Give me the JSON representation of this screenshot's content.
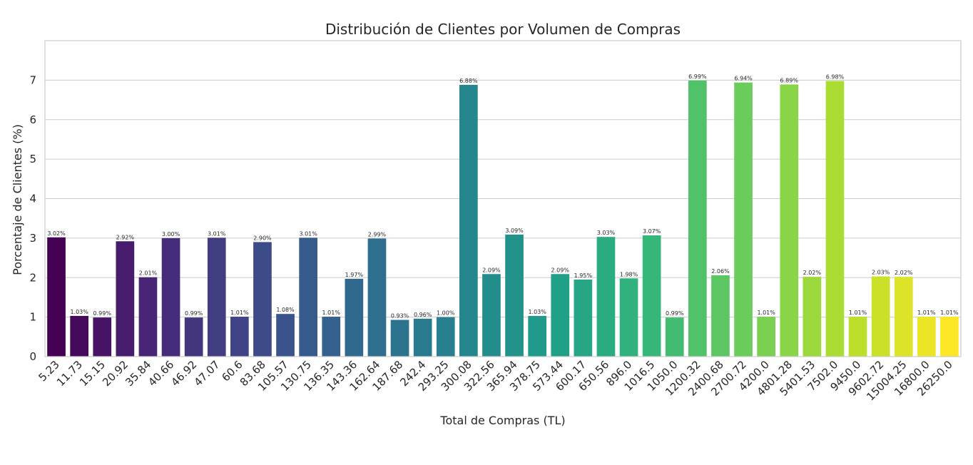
{
  "chart_data": {
    "type": "bar",
    "title": "Distribución de Clientes por Volumen de Compras",
    "xlabel": "Total de Compras (TL)",
    "ylabel": "Porcentaje de Clientes (%)",
    "ylim": [
      0,
      8
    ],
    "yticks": [
      "0",
      "1",
      "2",
      "3",
      "4",
      "5",
      "6",
      "7"
    ],
    "grid": "horizontal",
    "legend": "none",
    "colormap": "viridis",
    "colors": [
      "#440154",
      "#fde725"
    ],
    "categories": [
      "5.23",
      "11.73",
      "15.15",
      "20.92",
      "35.84",
      "40.66",
      "46.92",
      "47.07",
      "60.6",
      "83.68",
      "105.57",
      "130.75",
      "136.35",
      "143.36",
      "162.64",
      "187.68",
      "242.4",
      "293.25",
      "300.08",
      "322.56",
      "365.94",
      "378.75",
      "573.44",
      "600.17",
      "650.56",
      "896.0",
      "1016.5",
      "1050.0",
      "1200.32",
      "2400.68",
      "2700.72",
      "4200.0",
      "4801.28",
      "5401.53",
      "7502.0",
      "9450.0",
      "9602.72",
      "15004.25",
      "16800.0",
      "26250.0"
    ],
    "values": [
      3.02,
      1.03,
      0.99,
      2.92,
      2.01,
      3.0,
      0.99,
      3.01,
      1.01,
      2.9,
      1.08,
      3.01,
      1.01,
      1.97,
      2.99,
      0.93,
      0.96,
      1.0,
      6.88,
      2.09,
      3.09,
      1.03,
      2.09,
      1.95,
      3.03,
      1.98,
      3.07,
      0.99,
      6.99,
      2.06,
      6.94,
      1.01,
      6.89,
      2.02,
      6.98,
      1.01,
      2.03,
      2.02,
      1.01,
      1.01
    ],
    "data_labels": [
      "3.02%",
      "1.03%",
      "0.99%",
      "2.92%",
      "2.01%",
      "3.00%",
      "0.99%",
      "3.01%",
      "1.01%",
      "2.90%",
      "1.08%",
      "3.01%",
      "1.01%",
      "1.97%",
      "2.99%",
      "0.93%",
      "0.96%",
      "1.00%",
      "6.88%",
      "2.09%",
      "3.09%",
      "1.03%",
      "2.09%",
      "1.95%",
      "3.03%",
      "1.98%",
      "3.07%",
      "0.99%",
      "6.99%",
      "2.06%",
      "6.94%",
      "1.01%",
      "6.89%",
      "2.02%",
      "6.98%",
      "1.01%",
      "2.03%",
      "2.02%",
      "1.01%",
      "1.01%"
    ]
  }
}
